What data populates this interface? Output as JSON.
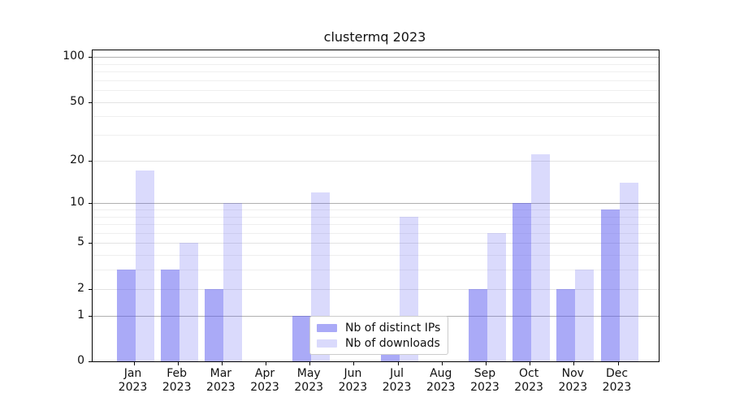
{
  "title": "clustermq 2023",
  "legend": {
    "items": [
      {
        "label": "Nb of distinct IPs",
        "color": "rgba(85,85,240,0.50)"
      },
      {
        "label": "Nb of downloads",
        "color": "rgba(85,85,240,0.22)"
      }
    ]
  },
  "chart_data": {
    "type": "bar",
    "title": "clustermq 2023",
    "categories": [
      "Jan 2023",
      "Feb 2023",
      "Mar 2023",
      "Apr 2023",
      "May 2023",
      "Jun 2023",
      "Jul 2023",
      "Aug 2023",
      "Sep 2023",
      "Oct 2023",
      "Nov 2023",
      "Dec 2023"
    ],
    "series": [
      {
        "name": "Nb of distinct IPs",
        "color": "rgba(85,85,240,0.50)",
        "values": [
          3,
          3,
          2,
          0,
          1,
          0,
          1,
          0,
          2,
          10,
          2,
          9
        ]
      },
      {
        "name": "Nb of downloads",
        "color": "rgba(85,85,240,0.22)",
        "values": [
          17,
          5,
          10,
          0,
          12,
          0,
          8,
          0,
          6,
          22,
          3,
          14
        ]
      }
    ],
    "xlabel": "",
    "ylabel": "",
    "yscale": "log10(1+x)",
    "ylim": [
      0,
      111
    ],
    "yticks": [
      0,
      1,
      2,
      5,
      10,
      20,
      50,
      100
    ],
    "minor_yticks": [
      3,
      4,
      6,
      7,
      8,
      9,
      30,
      40,
      60,
      70,
      80,
      90
    ],
    "decade_ticks": [
      1,
      10,
      100
    ],
    "grid": true,
    "legend_position": "lower center"
  },
  "colors": {
    "background": "#ffffff",
    "spine": "#000000",
    "decade_grid": "#b0b0b0",
    "major_grid": "#e3e3e3",
    "minor_grid": "#efefef",
    "text": "#111111"
  }
}
